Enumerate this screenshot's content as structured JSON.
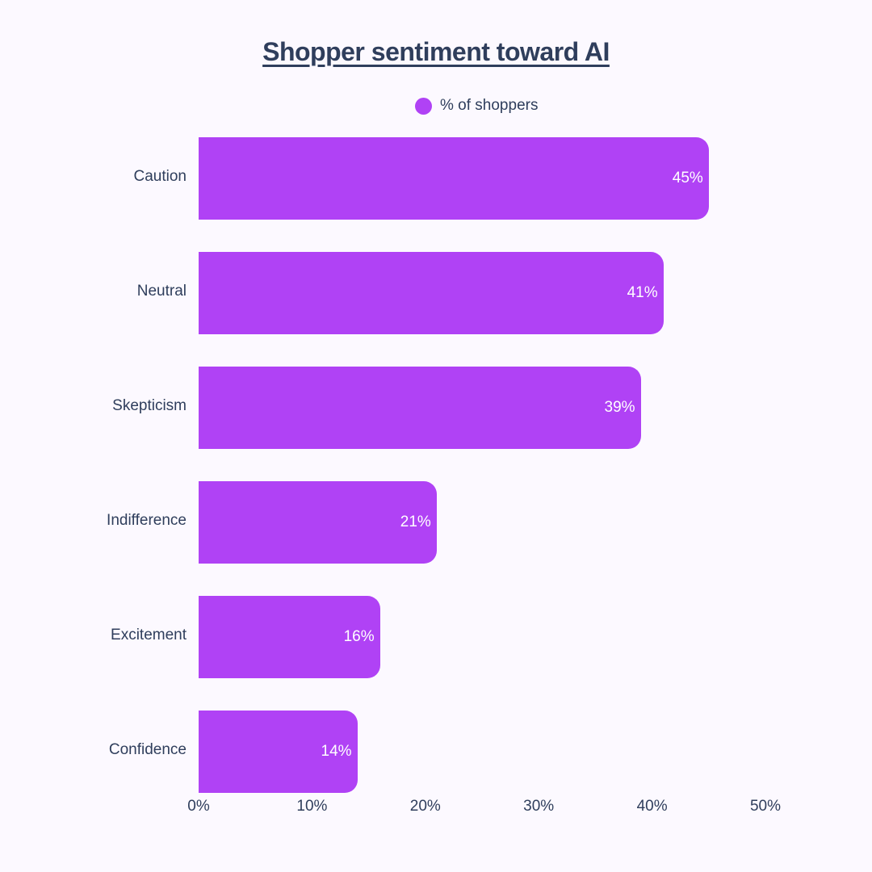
{
  "title": "Shopper sentiment toward AI",
  "legend": {
    "label": "% of shoppers",
    "color": "#b042f5"
  },
  "axis": {
    "ticks": [
      "0%",
      "10%",
      "20%",
      "30%",
      "40%",
      "50%"
    ]
  },
  "bars": [
    {
      "label": "Caution",
      "value": 45,
      "display": "45%"
    },
    {
      "label": "Neutral",
      "value": 41,
      "display": "41%"
    },
    {
      "label": "Skepticism",
      "value": 39,
      "display": "39%"
    },
    {
      "label": "Indifference",
      "value": 21,
      "display": "21%"
    },
    {
      "label": "Excitement",
      "value": 16,
      "display": "16%"
    },
    {
      "label": "Confidence",
      "value": 14,
      "display": "14%"
    }
  ],
  "chart_data": {
    "type": "bar",
    "orientation": "horizontal",
    "title": "Shopper sentiment toward AI",
    "categories": [
      "Caution",
      "Neutral",
      "Skepticism",
      "Indifference",
      "Excitement",
      "Confidence"
    ],
    "series": [
      {
        "name": "% of shoppers",
        "values": [
          45,
          41,
          39,
          21,
          16,
          14
        ],
        "color": "#b042f5"
      }
    ],
    "xlabel": "",
    "ylabel": "",
    "xlim": [
      0,
      50
    ],
    "xticks": [
      "0%",
      "10%",
      "20%",
      "30%",
      "40%",
      "50%"
    ],
    "grid": false,
    "legend_position": "top"
  }
}
